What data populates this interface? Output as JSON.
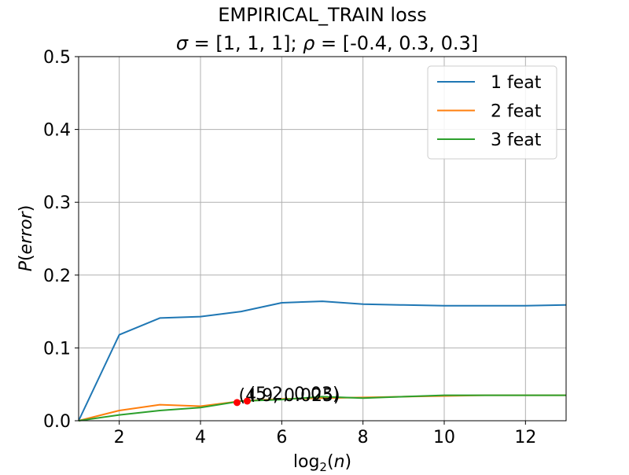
{
  "chart_data": {
    "type": "line",
    "title": {
      "line1": "EMPIRICAL_TRAIN loss",
      "line2_sigma_symbol": "σ",
      "line2_sigma_value": " = [1, 1, 1];  ",
      "line2_rho_symbol": "ρ",
      "line2_rho_value": " = [-0.4, 0.3, 0.3]"
    },
    "xlabel": {
      "prefix": "log",
      "subscript": "2",
      "open": "(",
      "var": "n",
      "close": ")"
    },
    "ylabel": {
      "P": "P",
      "open": "(",
      "var": "error",
      "close": ")"
    },
    "xlim": [
      1,
      13
    ],
    "ylim": [
      0,
      0.5
    ],
    "x_ticks": [
      2,
      4,
      6,
      8,
      10,
      12
    ],
    "y_ticks": [
      0.0,
      0.1,
      0.2,
      0.3,
      0.4,
      0.5
    ],
    "grid": true,
    "legend_position": "top-right",
    "x": [
      1,
      2,
      3,
      4,
      5,
      6,
      7,
      8,
      9,
      10,
      11,
      12,
      13
    ],
    "series": [
      {
        "name": "1 feat",
        "color": "#1f77b4",
        "values": [
          0.0,
          0.118,
          0.141,
          0.143,
          0.15,
          0.162,
          0.164,
          0.16,
          0.159,
          0.158,
          0.158,
          0.158,
          0.159
        ]
      },
      {
        "name": "2 feat",
        "color": "#ff7f0e",
        "values": [
          0.0,
          0.014,
          0.022,
          0.02,
          0.027,
          0.03,
          0.031,
          0.032,
          0.033,
          0.034,
          0.035,
          0.035,
          0.035
        ]
      },
      {
        "name": "3 feat",
        "color": "#2ca02c",
        "values": [
          0.0,
          0.008,
          0.014,
          0.018,
          0.027,
          0.029,
          0.033,
          0.031,
          0.033,
          0.035,
          0.035,
          0.035,
          0.035
        ]
      }
    ],
    "annotations": [
      {
        "x": 4.9,
        "y": 0.025,
        "label": "(4.9, 0.025)",
        "color": "#ff0000"
      },
      {
        "x": 5.15,
        "y": 0.027,
        "label": "(5.2, 0.03)",
        "color": "#ff0000"
      }
    ]
  }
}
